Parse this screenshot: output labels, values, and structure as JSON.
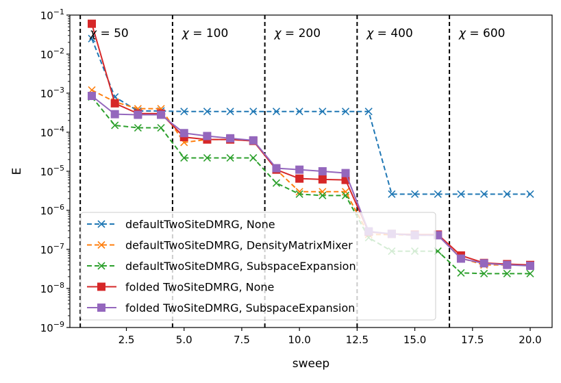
{
  "chart_data": {
    "type": "line",
    "xlabel": "sweep",
    "ylabel": "E",
    "xlim": [
      0.05,
      20.95
    ],
    "ylim": [
      1e-09,
      0.1
    ],
    "yscale": "log",
    "grid": false,
    "legend_position": "lower-left",
    "x_ticks": [
      {
        "value": 2.5,
        "label": "2.5"
      },
      {
        "value": 5.0,
        "label": "5.0"
      },
      {
        "value": 7.5,
        "label": "7.5"
      },
      {
        "value": 10.0,
        "label": "10.0"
      },
      {
        "value": 12.5,
        "label": "12.5"
      },
      {
        "value": 15.0,
        "label": "15.0"
      },
      {
        "value": 17.5,
        "label": "17.5"
      },
      {
        "value": 20.0,
        "label": "20.0"
      }
    ],
    "y_ticks": [
      {
        "exp": -9,
        "base": "10",
        "power": "−9"
      },
      {
        "exp": -8,
        "base": "10",
        "power": "−8"
      },
      {
        "exp": -7,
        "base": "10",
        "power": "−7"
      },
      {
        "exp": -6,
        "base": "10",
        "power": "−6"
      },
      {
        "exp": -5,
        "base": "10",
        "power": "−5"
      },
      {
        "exp": -4,
        "base": "10",
        "power": "−4"
      },
      {
        "exp": -3,
        "base": "10",
        "power": "−3"
      },
      {
        "exp": -2,
        "base": "10",
        "power": "−2"
      },
      {
        "exp": -1,
        "base": "10",
        "power": "−1"
      }
    ],
    "vlines": [
      0.5,
      4.5,
      8.5,
      12.5,
      16.5
    ],
    "annotations": [
      {
        "x": 1.0,
        "chi": "χ",
        "eq": " = 50"
      },
      {
        "x": 5.0,
        "chi": "χ",
        "eq": " = 100"
      },
      {
        "x": 9.0,
        "chi": "χ",
        "eq": " = 200"
      },
      {
        "x": 13.0,
        "chi": "χ",
        "eq": " = 400"
      },
      {
        "x": 17.0,
        "chi": "χ",
        "eq": " = 600"
      }
    ],
    "x": [
      1,
      2,
      3,
      4,
      5,
      6,
      7,
      8,
      9,
      10,
      11,
      12,
      13,
      14,
      15,
      16,
      17,
      18,
      19,
      20
    ],
    "series": [
      {
        "name": "defaultTwoSiteDMRG, None",
        "color": "#1f77b4",
        "dashed": true,
        "marker": "x",
        "values": [
          0.025,
          0.0008,
          0.00035,
          0.00035,
          0.00034,
          0.00034,
          0.00034,
          0.00034,
          0.00034,
          0.00034,
          0.00034,
          0.00034,
          0.00034,
          2.6e-06,
          2.6e-06,
          2.6e-06,
          2.6e-06,
          2.6e-06,
          2.6e-06,
          2.6e-06
        ]
      },
      {
        "name": "defaultTwoSiteDMRG, DensityMatrixMixer",
        "color": "#ff7f0e",
        "dashed": true,
        "marker": "x",
        "values": [
          0.0012,
          0.0006,
          0.0004,
          0.0004,
          5.5e-05,
          6.5e-05,
          6.5e-05,
          6e-05,
          1.1e-05,
          3e-06,
          3e-06,
          3e-06,
          2.4e-07,
          2.4e-07,
          2.3e-07,
          2.3e-07,
          6e-08,
          4e-08,
          4e-08,
          4e-08
        ]
      },
      {
        "name": "defaultTwoSiteDMRG, SubspaceExpansion",
        "color": "#2ca02c",
        "dashed": true,
        "marker": "x",
        "values": [
          0.0008,
          0.00015,
          0.00013,
          0.00013,
          2.2e-05,
          2.2e-05,
          2.2e-05,
          2.2e-05,
          5e-06,
          2.6e-06,
          2.4e-06,
          2.4e-06,
          2e-07,
          9e-08,
          9e-08,
          9e-08,
          2.5e-08,
          2.4e-08,
          2.4e-08,
          2.4e-08
        ]
      },
      {
        "name": "folded TwoSiteDMRG, None",
        "color": "#d62728",
        "dashed": false,
        "marker": "s",
        "values": [
          0.06,
          0.00055,
          0.0003,
          0.0003,
          7.5e-05,
          6.5e-05,
          6.5e-05,
          6e-05,
          1.1e-05,
          6.5e-06,
          6.2e-06,
          6e-06,
          2.8e-07,
          2.5e-07,
          2.4e-07,
          2.4e-07,
          7e-08,
          4.5e-08,
          4.2e-08,
          4e-08
        ]
      },
      {
        "name": "folded TwoSiteDMRG, SubspaceExpansion",
        "color": "#9467bd",
        "dashed": false,
        "marker": "s",
        "values": [
          0.00085,
          0.00029,
          0.00028,
          0.00028,
          9.5e-05,
          8e-05,
          7e-05,
          6.2e-05,
          1.2e-05,
          1.1e-05,
          1e-05,
          9e-06,
          2.9e-07,
          2.5e-07,
          2.3e-07,
          2.3e-07,
          5.8e-08,
          4.4e-08,
          4e-08,
          3.8e-08
        ]
      }
    ]
  }
}
